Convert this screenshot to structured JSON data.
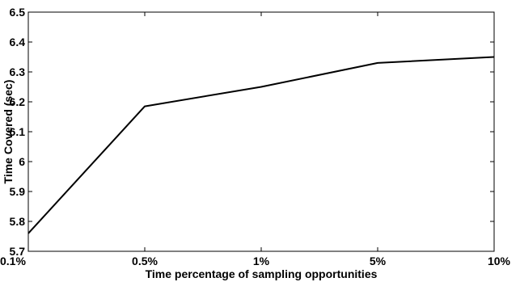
{
  "chart_data": {
    "type": "line",
    "xlabel": "Time percentage of sampling opportunities",
    "ylabel": "Time Covered (sec)",
    "categories": [
      "0.1%",
      "0.5%",
      "1%",
      "5%",
      "10%"
    ],
    "series": [
      {
        "values": [
          5.76,
          6.185,
          6.25,
          6.33,
          6.35
        ],
        "color": "#000000"
      }
    ],
    "ylim": [
      5.7,
      6.5
    ],
    "yticks": [
      "5.7",
      "5.8",
      "5.9",
      "6",
      "6.1",
      "6.2",
      "6.3",
      "6.4",
      "6.5"
    ],
    "grid": false
  }
}
